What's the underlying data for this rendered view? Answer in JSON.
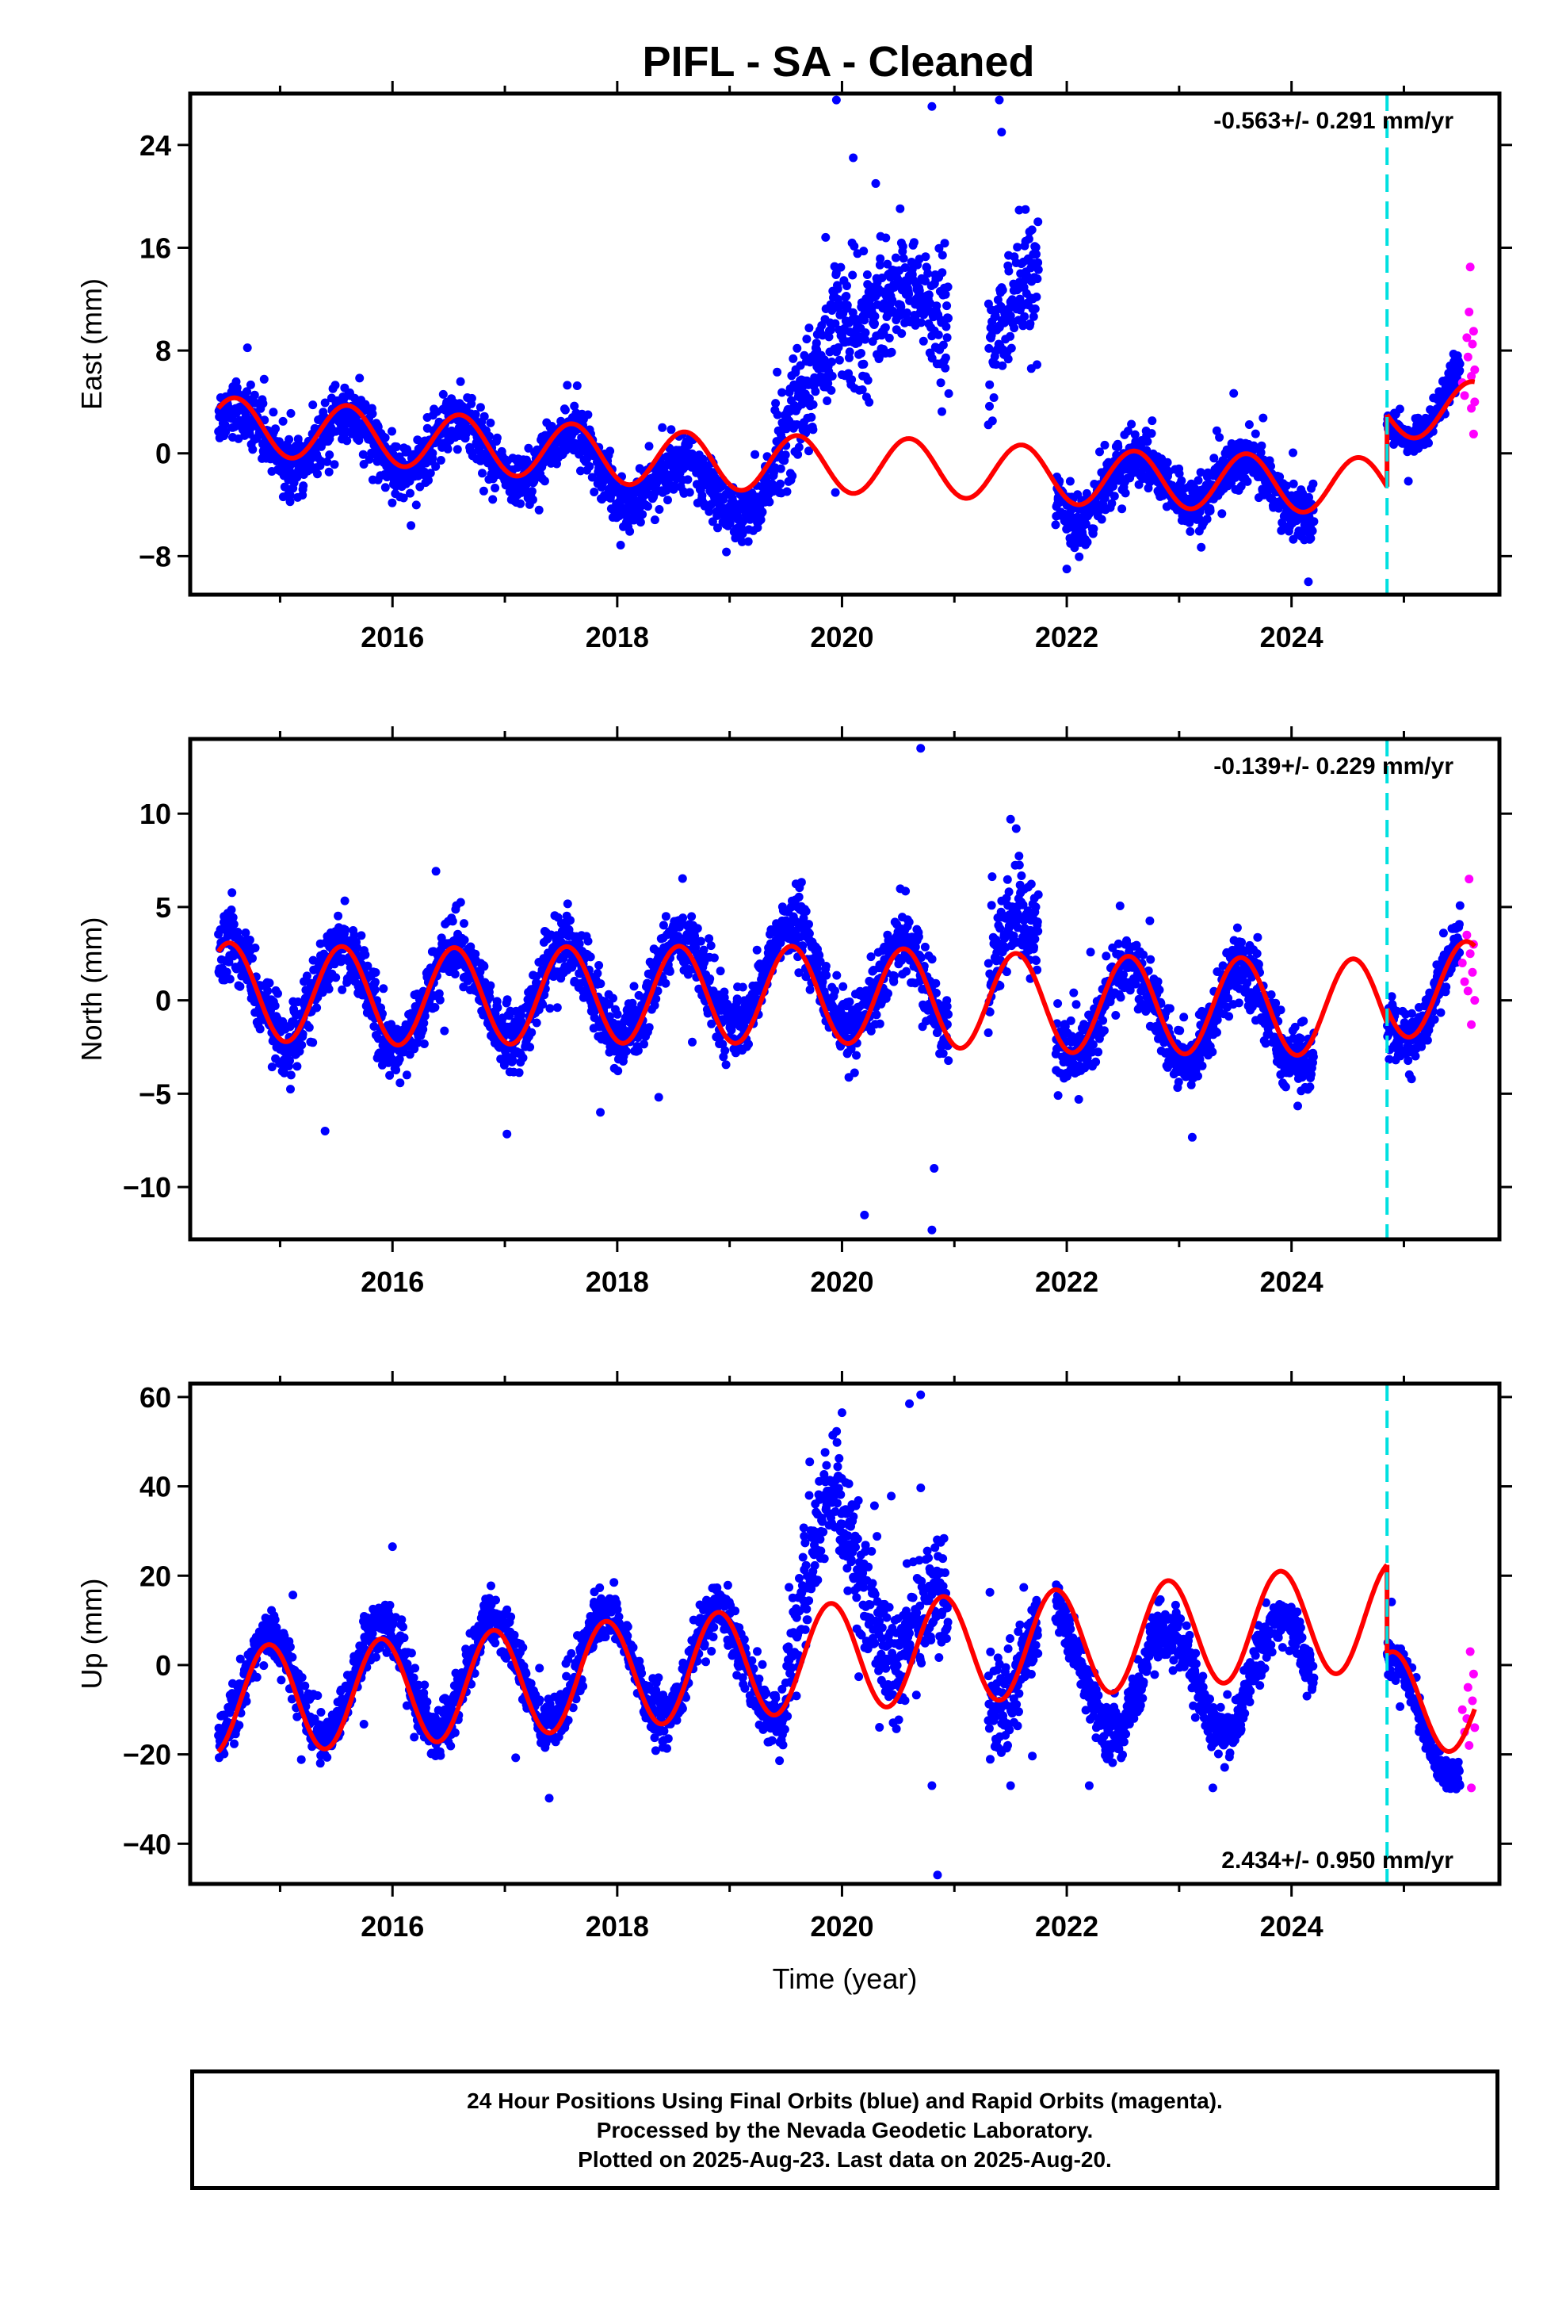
{
  "page": {
    "title": "PIFL  - SA - Cleaned",
    "x_axis_label": "Time (year)"
  },
  "colors": {
    "final_orbits": "#0000ff",
    "rapid_orbits": "#ff00ff",
    "model": "#ff0000",
    "antenna_change": "#00e0e0",
    "frame": "#000000"
  },
  "caption": {
    "line1": "24 Hour Positions Using Final Orbits (blue) and Rapid Orbits (magenta).",
    "line2": "Processed by the Nevada Geodetic Laboratory.",
    "line3": "Plotted on 2025-Aug-23. Last data on 2025-Aug-20."
  },
  "chart_data": [
    {
      "type": "scatter",
      "panel": "east",
      "ylabel": "East (mm)",
      "xlim": [
        2014.2,
        2025.85
      ],
      "ylim": [
        -11,
        28
      ],
      "xticks": [
        2016,
        2018,
        2020,
        2022,
        2024
      ],
      "yticks": [
        -8,
        0,
        8,
        16,
        24
      ],
      "rate_text": "-0.563+/- 0.291 mm/yr",
      "rate_position": "top-right",
      "grid": false,
      "discontinuity_year": 2024.85,
      "data_start": 2014.45,
      "data_end": 2025.63,
      "rapid_start": 2025.5,
      "gaps": [
        [
          2020.95,
          2021.3
        ],
        [
          2021.75,
          2021.9
        ],
        [
          2024.2,
          2024.85
        ]
      ],
      "series": [
        {
          "name": "Final orbits",
          "segments": [
            {
              "start": 2014.45,
              "end": 2019.4,
              "trend": [
                [
                  2014.45,
                  1.5
                ],
                [
                  2015.5,
                  1.0
                ],
                [
                  2016.5,
                  0.5
                ],
                [
                  2017.5,
                  -0.5
                ],
                [
                  2018.5,
                  -2.5
                ],
                [
                  2019.4,
                  -3.0
                ]
              ],
              "noise": 1.8
            },
            {
              "start": 2019.4,
              "end": 2020.95,
              "trend": [
                [
                  2019.4,
                  -1.0
                ],
                [
                  2019.7,
                  3.0
                ],
                [
                  2019.95,
                  12.0
                ],
                [
                  2020.5,
                  11.0
                ],
                [
                  2020.95,
                  10.0
                ]
              ],
              "noise": 4.0
            },
            {
              "start": 2021.3,
              "end": 2021.75,
              "trend": [
                [
                  2021.3,
                  8.0
                ],
                [
                  2021.75,
                  12.0
                ]
              ],
              "noise": 4.0
            },
            {
              "start": 2021.9,
              "end": 2024.2,
              "trend": [
                [
                  2021.9,
                  -3.0
                ],
                [
                  2023.0,
                  -2.0
                ],
                [
                  2024.2,
                  -3.0
                ]
              ],
              "noise": 1.8
            },
            {
              "start": 2024.85,
              "end": 2025.5,
              "trend": [
                [
                  2024.85,
                  2.5
                ],
                [
                  2025.5,
                  5.0
                ]
              ],
              "noise": 1.2
            }
          ],
          "annual_amplitude": 2.2,
          "annual_phase_year": 2015.6,
          "outliers": [
            [
              2019.95,
              27.5
            ],
            [
              2020.1,
              23.0
            ],
            [
              2020.3,
              21.0
            ],
            [
              2020.8,
              27.0
            ],
            [
              2021.4,
              27.5
            ],
            [
              2021.42,
              25.0
            ],
            [
              2024.15,
              -10.0
            ],
            [
              2022.0,
              -9.0
            ]
          ]
        },
        {
          "name": "Rapid orbits",
          "points": [
            [
              2025.52,
              5.5
            ],
            [
              2025.54,
              4.5
            ],
            [
              2025.56,
              9.0
            ],
            [
              2025.57,
              7.5
            ],
            [
              2025.58,
              11.0
            ],
            [
              2025.59,
              14.5
            ],
            [
              2025.6,
              6.0
            ],
            [
              2025.6,
              3.5
            ],
            [
              2025.61,
              8.5
            ],
            [
              2025.62,
              1.5
            ],
            [
              2025.62,
              9.5
            ],
            [
              2025.63,
              4.0
            ],
            [
              2025.63,
              6.5
            ]
          ]
        },
        {
          "name": "Model",
          "segments": [
            {
              "start": 2014.45,
              "end": 2024.85,
              "trend": [
                [
                  2014.45,
                  2.2
                ],
                [
                  2015.5,
                  1.6
                ],
                [
                  2017.0,
                  0.5
                ],
                [
                  2018.5,
                  -0.5
                ],
                [
                  2019.5,
                  -0.8
                ],
                [
                  2020.5,
                  -1.0
                ],
                [
                  2021.5,
                  -1.5
                ],
                [
                  2022.5,
                  -2.0
                ],
                [
                  2023.5,
                  -2.2
                ],
                [
                  2024.85,
                  -2.6
                ]
              ],
              "annual": 2.2,
              "annual_phase_year": 2015.6
            },
            {
              "start": 2024.85,
              "end": 2025.63,
              "trend": [
                [
                  2024.85,
                  3.0
                ],
                [
                  2025.63,
                  3.6
                ]
              ],
              "annual": 2.0,
              "annual_phase_year": 2015.6
            }
          ]
        }
      ]
    },
    {
      "type": "scatter",
      "panel": "north",
      "ylabel": "North (mm)",
      "xlim": [
        2014.2,
        2025.85
      ],
      "ylim": [
        -12.8,
        14
      ],
      "xticks": [
        2016,
        2018,
        2020,
        2022,
        2024
      ],
      "yticks": [
        -10,
        -5,
        0,
        5,
        10
      ],
      "rate_text": "-0.139+/- 0.229 mm/yr",
      "rate_position": "top-right",
      "grid": false,
      "discontinuity_year": 2024.85,
      "data_start": 2014.45,
      "data_end": 2025.63,
      "rapid_start": 2025.5,
      "gaps": [
        [
          2020.95,
          2021.3
        ],
        [
          2021.75,
          2021.9
        ],
        [
          2024.2,
          2024.85
        ]
      ],
      "series": [
        {
          "name": "Final orbits",
          "segments": [
            {
              "start": 2014.45,
              "end": 2020.95,
              "trend": [
                [
                  2014.45,
                  0.5
                ],
                [
                  2016.0,
                  0.2
                ],
                [
                  2018.0,
                  0.5
                ],
                [
                  2019.6,
                  1.5
                ],
                [
                  2020.95,
                  0.0
                ]
              ],
              "noise": 1.5
            },
            {
              "start": 2021.3,
              "end": 2021.75,
              "trend": [
                [
                  2021.3,
                  1.0
                ],
                [
                  2021.75,
                  2.0
                ]
              ],
              "noise": 2.5
            },
            {
              "start": 2021.9,
              "end": 2024.2,
              "trend": [
                [
                  2021.9,
                  -0.5
                ],
                [
                  2024.2,
                  -1.0
                ]
              ],
              "noise": 1.5
            },
            {
              "start": 2024.85,
              "end": 2025.5,
              "trend": [
                [
                  2024.85,
                  0.0
                ],
                [
                  2025.5,
                  1.0
                ]
              ],
              "noise": 1.2
            }
          ],
          "annual_amplitude": 2.6,
          "annual_phase_year": 2015.55,
          "outliers": [
            [
              2020.2,
              -11.5
            ],
            [
              2020.7,
              13.5
            ],
            [
              2020.8,
              -12.3
            ],
            [
              2020.82,
              -9.0
            ],
            [
              2017.85,
              -6.0
            ],
            [
              2021.5,
              9.7
            ],
            [
              2021.55,
              9.2
            ],
            [
              2015.4,
              -7.0
            ]
          ]
        },
        {
          "name": "Rapid orbits",
          "points": [
            [
              2025.52,
              2.0
            ],
            [
              2025.54,
              1.0
            ],
            [
              2025.56,
              3.5
            ],
            [
              2025.57,
              0.5
            ],
            [
              2025.58,
              6.5
            ],
            [
              2025.59,
              2.5
            ],
            [
              2025.6,
              -1.3
            ],
            [
              2025.61,
              1.5
            ],
            [
              2025.62,
              3.0
            ],
            [
              2025.63,
              0.0
            ]
          ]
        },
        {
          "name": "Model",
          "segments": [
            {
              "start": 2014.45,
              "end": 2024.85,
              "trend": [
                [
                  2014.45,
                  0.5
                ],
                [
                  2016.0,
                  0.2
                ],
                [
                  2018.0,
                  0.3
                ],
                [
                  2020.0,
                  0.3
                ],
                [
                  2022.0,
                  -0.2
                ],
                [
                  2024.85,
                  -0.4
                ]
              ],
              "annual": 2.6,
              "annual_phase_year": 2015.55
            },
            {
              "start": 2024.85,
              "end": 2025.63,
              "trend": [
                [
                  2024.85,
                  0.3
                ],
                [
                  2025.63,
                  0.8
                ]
              ],
              "annual": 2.4,
              "annual_phase_year": 2015.55
            }
          ]
        }
      ]
    },
    {
      "type": "scatter",
      "panel": "up",
      "ylabel": "Up (mm)",
      "xlim": [
        2014.2,
        2025.85
      ],
      "ylim": [
        -49,
        63
      ],
      "xticks": [
        2016,
        2018,
        2020,
        2022,
        2024
      ],
      "yticks": [
        -40,
        -20,
        0,
        20,
        40,
        60
      ],
      "rate_text": "2.434+/- 0.950 mm/yr",
      "rate_position": "bottom-right",
      "grid": false,
      "discontinuity_year": 2024.85,
      "data_start": 2014.45,
      "data_end": 2025.63,
      "rapid_start": 2025.5,
      "gaps": [
        [
          2020.95,
          2021.3
        ],
        [
          2021.75,
          2021.9
        ],
        [
          2024.2,
          2024.85
        ]
      ],
      "series": [
        {
          "name": "Final orbits",
          "segments": [
            {
              "start": 2014.45,
              "end": 2019.5,
              "trend": [
                [
                  2014.45,
                  -6.0
                ],
                [
                  2016.0,
                  -3.0
                ],
                [
                  2018.0,
                  0.0
                ],
                [
                  2019.5,
                  0.0
                ]
              ],
              "noise": 5.0
            },
            {
              "start": 2019.5,
              "end": 2020.95,
              "trend": [
                [
                  2019.5,
                  8.0
                ],
                [
                  2019.9,
                  25.0
                ],
                [
                  2020.5,
                  12.0
                ],
                [
                  2020.95,
                  5.0
                ]
              ],
              "noise": 12.0
            },
            {
              "start": 2021.3,
              "end": 2021.75,
              "trend": [
                [
                  2021.3,
                  0.0
                ],
                [
                  2021.75,
                  5.0
                ]
              ],
              "noise": 10.0
            },
            {
              "start": 2021.9,
              "end": 2024.2,
              "trend": [
                [
                  2021.9,
                  0.0
                ],
                [
                  2022.5,
                  -4.0
                ],
                [
                  2023.2,
                  -4.0
                ],
                [
                  2024.2,
                  0.0
                ]
              ],
              "noise": 5.0
            },
            {
              "start": 2024.85,
              "end": 2025.5,
              "trend": [
                [
                  2024.85,
                  -10.0
                ],
                [
                  2025.5,
                  -14.0
                ]
              ],
              "noise": 3.5
            }
          ],
          "annual_amplitude": 12.0,
          "annual_phase_year": 2015.9,
          "outliers": [
            [
              2020.0,
              56.5
            ],
            [
              2020.6,
              58.5
            ],
            [
              2020.7,
              60.5
            ],
            [
              2020.85,
              -47.0
            ],
            [
              2020.8,
              -27.0
            ],
            [
              2016.0,
              26.5
            ],
            [
              2021.5,
              -27.0
            ],
            [
              2022.2,
              -27.0
            ],
            [
              2023.3,
              -27.5
            ]
          ]
        },
        {
          "name": "Rapid orbits",
          "points": [
            [
              2025.52,
              -10.0
            ],
            [
              2025.54,
              -15.0
            ],
            [
              2025.56,
              -12.0
            ],
            [
              2025.57,
              -5.0
            ],
            [
              2025.58,
              -18.0
            ],
            [
              2025.59,
              3.0
            ],
            [
              2025.6,
              -27.5
            ],
            [
              2025.61,
              -8.0
            ],
            [
              2025.62,
              -2.0
            ],
            [
              2025.63,
              -14.0
            ]
          ]
        },
        {
          "name": "Model",
          "segments": [
            {
              "start": 2014.45,
              "end": 2024.85,
              "trend": [
                [
                  2014.45,
                  -8.0
                ],
                [
                  2016.0,
                  -6.0
                ],
                [
                  2018.0,
                  -2.0
                ],
                [
                  2020.0,
                  2.0
                ],
                [
                  2022.0,
                  5.0
                ],
                [
                  2024.85,
                  11.0
                ]
              ],
              "annual": 12.0,
              "annual_phase_year": 2015.9
            },
            {
              "start": 2024.85,
              "end": 2025.63,
              "trend": [
                [
                  2024.85,
                  -8.0
                ],
                [
                  2025.63,
                  -8.5
                ]
              ],
              "annual": 11.0,
              "annual_phase_year": 2015.9
            }
          ]
        }
      ]
    }
  ]
}
